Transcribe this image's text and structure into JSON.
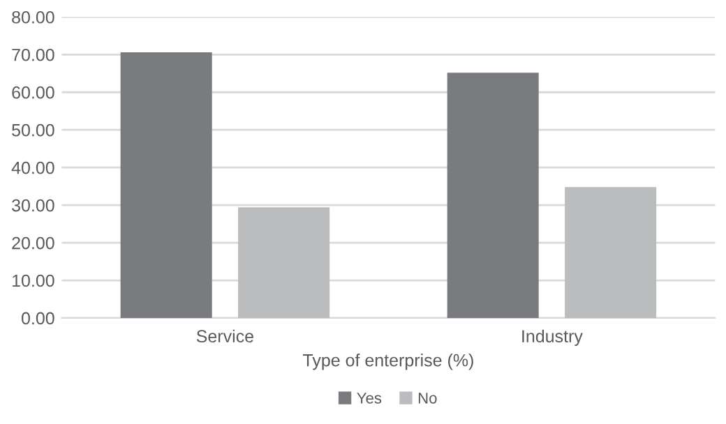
{
  "chart_data": {
    "type": "bar",
    "xlabel": "Type of enterprise (%)",
    "categories": [
      "Service",
      "Industry"
    ],
    "series": [
      {
        "name": "Yes",
        "color": "#7a7b7e",
        "values": [
          70.6,
          65.2
        ]
      },
      {
        "name": "No",
        "color": "#bbbcbe",
        "values": [
          29.4,
          34.8
        ]
      }
    ],
    "ylim": [
      0,
      80
    ],
    "yticks": [
      {
        "value": 0,
        "label": "0.00"
      },
      {
        "value": 10,
        "label": "10.00"
      },
      {
        "value": 20,
        "label": "20.00"
      },
      {
        "value": 30,
        "label": "30.00"
      },
      {
        "value": 40,
        "label": "40.00"
      },
      {
        "value": 50,
        "label": "50.00"
      },
      {
        "value": 60,
        "label": "60.00"
      },
      {
        "value": 70,
        "label": "70.00"
      },
      {
        "value": 80,
        "label": "80.00"
      }
    ],
    "grid": "y",
    "legend": "bottom"
  }
}
